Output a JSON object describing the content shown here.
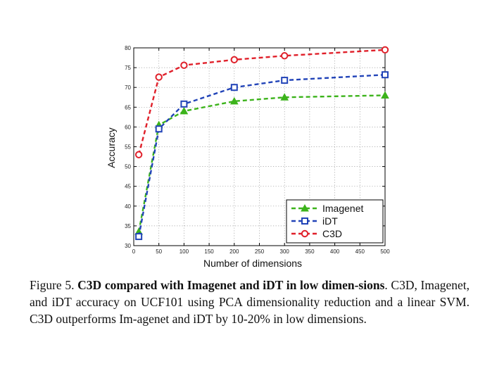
{
  "chart_data": {
    "type": "line",
    "xlabel": "Number of dimensions",
    "ylabel": "Accuracy",
    "x_ticks": [
      0,
      50,
      100,
      150,
      200,
      250,
      300,
      350,
      400,
      450,
      500
    ],
    "x_tick_labels": [
      "0",
      "50",
      "100",
      "150",
      "200",
      "250",
      "300",
      "350",
      "400",
      "450",
      "500"
    ],
    "ylim": [
      30,
      80
    ],
    "y_ticks": [
      30,
      35,
      40,
      45,
      50,
      55,
      60,
      65,
      70,
      75,
      80
    ],
    "y_tick_labels": [
      "30",
      "35",
      "40",
      "45",
      "50",
      "55",
      "60",
      "65",
      "70",
      "75",
      "80"
    ],
    "grid": true,
    "legend_position": "bottom-right",
    "x": [
      10,
      50,
      100,
      200,
      300,
      500
    ],
    "series": [
      {
        "name": "Imagenet",
        "marker": "triangle",
        "color": "#3cb31b",
        "values": [
          33.5,
          60.5,
          64.0,
          66.5,
          67.5,
          68.0
        ]
      },
      {
        "name": "iDT",
        "marker": "square",
        "color": "#2244b8",
        "values": [
          32.3,
          59.5,
          65.8,
          70.0,
          71.8,
          73.2
        ]
      },
      {
        "name": "C3D",
        "marker": "circle",
        "color": "#e0202a",
        "values": [
          53.0,
          72.6,
          75.6,
          77.0,
          78.0,
          79.5
        ]
      }
    ]
  },
  "caption": {
    "prefix": "Figure 5. ",
    "title": "C3D compared with Imagenet and iDT in low dimen-sions",
    "body": ". C3D, Imagenet, and iDT accuracy on UCF101 using PCA dimensionality reduction and a linear SVM. C3D outperforms Im-agenet and iDT by 10-20% in low dimensions."
  }
}
